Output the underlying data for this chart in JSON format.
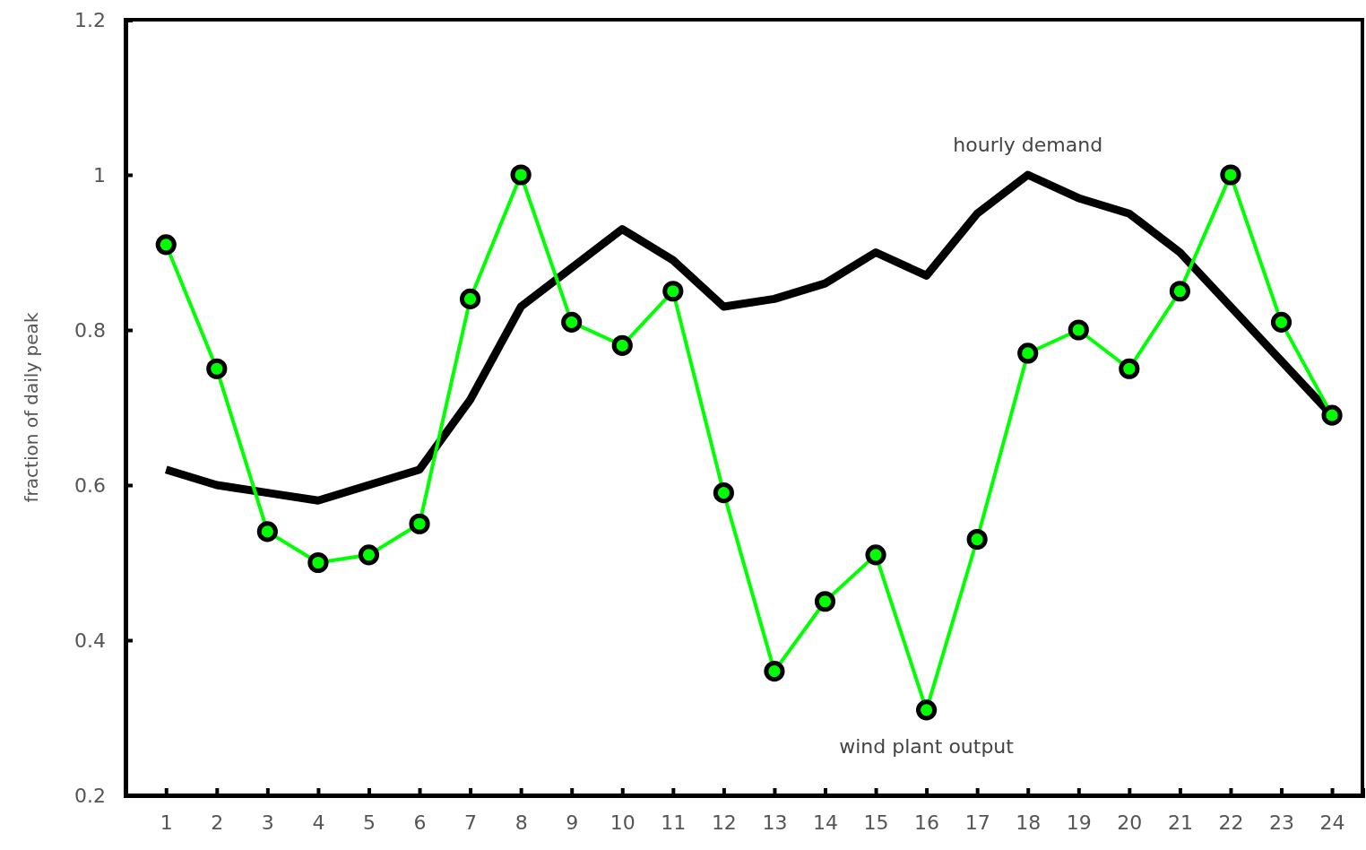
{
  "chart_data": {
    "type": "line",
    "ylabel": "fraction of daily peak",
    "x": [
      1,
      2,
      3,
      4,
      5,
      6,
      7,
      8,
      9,
      10,
      11,
      12,
      13,
      14,
      15,
      16,
      17,
      18,
      19,
      20,
      21,
      22,
      23,
      24
    ],
    "xlim": [
      0.2,
      24.6
    ],
    "xticks": [
      1,
      2,
      3,
      4,
      5,
      6,
      7,
      8,
      9,
      10,
      11,
      12,
      13,
      14,
      15,
      16,
      17,
      18,
      19,
      20,
      21,
      22,
      23,
      24
    ],
    "ylim": [
      0.2,
      1.2
    ],
    "yticks": [
      0.2,
      0.4,
      0.6,
      0.8,
      1,
      1.2
    ],
    "grid": false,
    "series": [
      {
        "name": "hourly demand",
        "color": "#000000",
        "marker": "none",
        "values": [
          0.62,
          0.6,
          0.59,
          0.58,
          0.6,
          0.62,
          0.71,
          0.83,
          0.88,
          0.93,
          0.89,
          0.83,
          0.84,
          0.86,
          0.9,
          0.87,
          0.95,
          1.0,
          0.97,
          0.95,
          0.9,
          0.83,
          0.76,
          0.69
        ]
      },
      {
        "name": "wind plant output",
        "color": "#00ff00",
        "marker": "circle",
        "values": [
          0.91,
          0.75,
          0.54,
          0.5,
          0.51,
          0.55,
          0.84,
          1.0,
          0.81,
          0.78,
          0.85,
          0.59,
          0.36,
          0.45,
          0.51,
          0.31,
          0.53,
          0.77,
          0.8,
          0.75,
          0.85,
          1.0,
          0.81,
          0.69
        ]
      }
    ]
  }
}
